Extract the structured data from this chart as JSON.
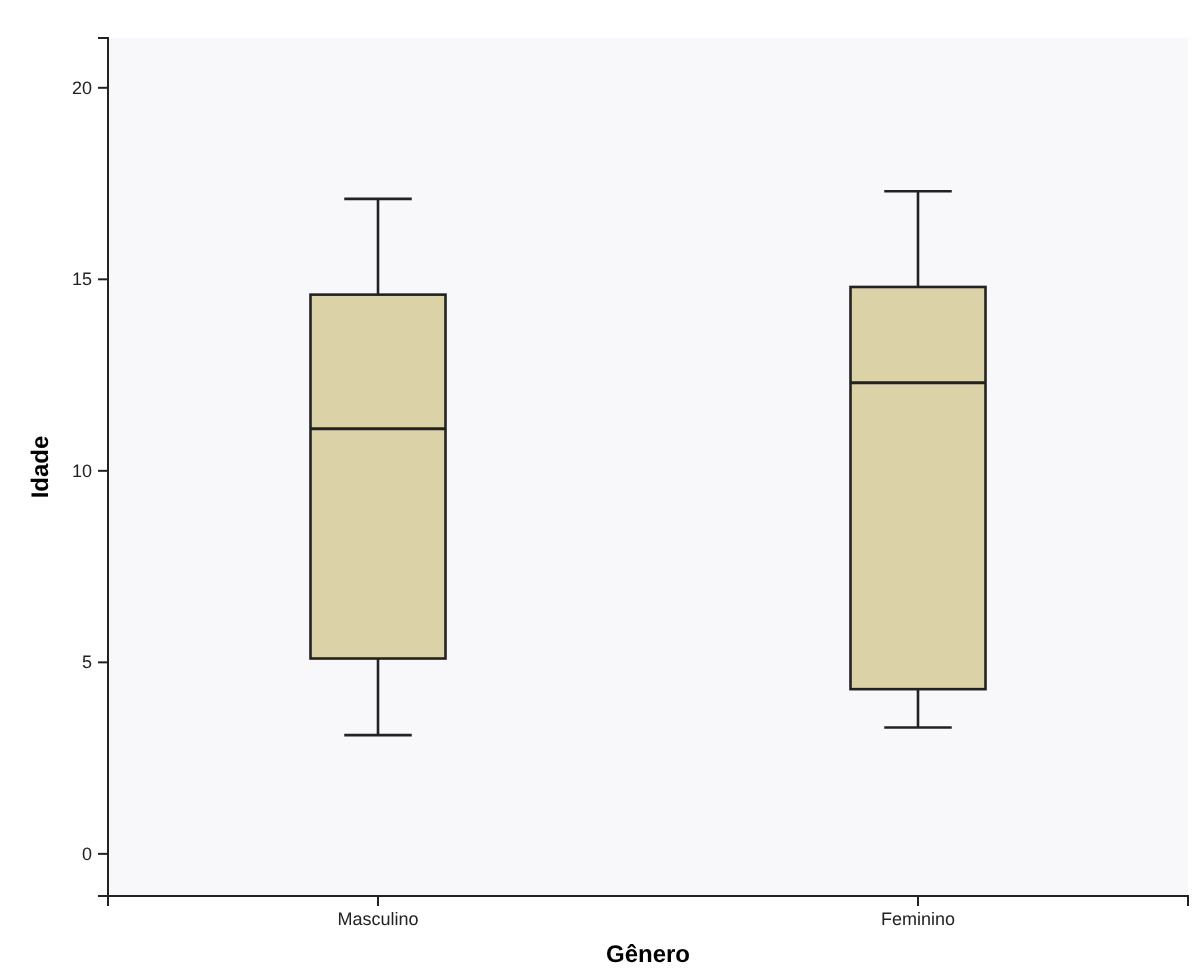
{
  "chart_data": {
    "type": "box",
    "xlabel": "Gênero",
    "ylabel": "Idade",
    "categories": [
      "Masculino",
      "Feminino"
    ],
    "boxes": [
      {
        "low": 3.1,
        "q1": 5.1,
        "median": 11.1,
        "q3": 14.6,
        "high": 17.1
      },
      {
        "low": 3.3,
        "q1": 4.3,
        "median": 12.3,
        "q3": 14.8,
        "high": 17.3
      }
    ],
    "color": "#dcd2a8",
    "ylim": [
      -1.1,
      21.3
    ],
    "yticks": [
      0,
      5,
      10,
      15,
      20
    ],
    "grid": false
  }
}
